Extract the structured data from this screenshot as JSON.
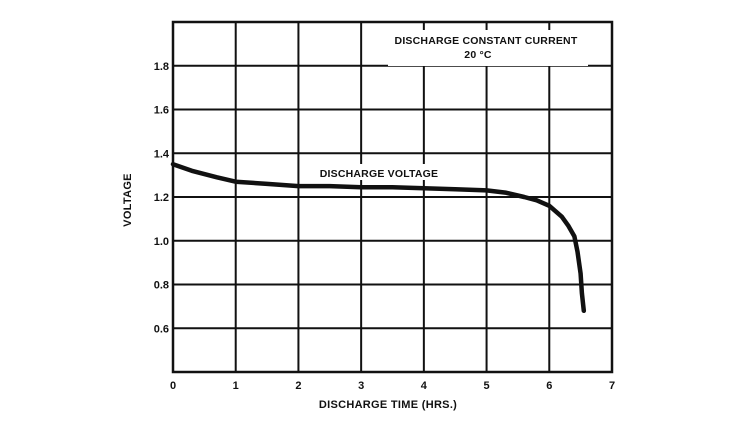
{
  "chart_data": {
    "type": "line",
    "title": "",
    "xlabel": "DISCHARGE TIME (HRS.)",
    "ylabel": "VOLTAGE",
    "xlim": [
      0,
      7
    ],
    "ylim": [
      0.4,
      2.0
    ],
    "x_ticks": [
      "0",
      "1",
      "2",
      "3",
      "4",
      "5",
      "6",
      "7"
    ],
    "y_ticks": [
      {
        "value": 0.6,
        "label": "0.6"
      },
      {
        "value": 0.8,
        "label": "0.8"
      },
      {
        "value": 1.0,
        "label": "1.0"
      },
      {
        "value": 1.2,
        "label": "1.2"
      },
      {
        "value": 1.4,
        "label": "1.4"
      },
      {
        "value": 1.6,
        "label": "1.6"
      },
      {
        "value": 1.8,
        "label": "1.8"
      }
    ],
    "grid": true,
    "annotations": [
      "DISCHARGE CONSTANT CURRENT",
      "20 °C"
    ],
    "series": [
      {
        "name": "DISCHARGE VOLTAGE",
        "color": "#111111",
        "x": [
          0,
          0.3,
          0.7,
          1.0,
          1.5,
          2.0,
          2.5,
          3.0,
          3.5,
          4.0,
          4.5,
          5.0,
          5.3,
          5.6,
          5.8,
          6.0,
          6.2,
          6.3,
          6.4,
          6.45,
          6.5,
          6.52,
          6.55
        ],
        "y": [
          1.35,
          1.32,
          1.29,
          1.27,
          1.26,
          1.25,
          1.25,
          1.245,
          1.245,
          1.24,
          1.235,
          1.23,
          1.22,
          1.2,
          1.185,
          1.16,
          1.11,
          1.07,
          1.02,
          0.95,
          0.85,
          0.76,
          0.68
        ]
      }
    ]
  }
}
